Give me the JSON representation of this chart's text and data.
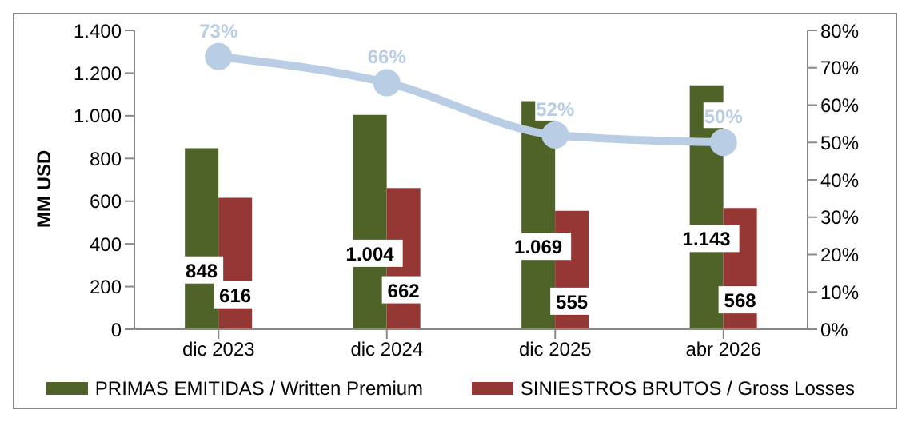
{
  "chart_data": {
    "type": "bar",
    "categories": [
      "dic 2023",
      "dic 2024",
      "dic 2025",
      "abr 2026"
    ],
    "ylabel": "MM  USD",
    "series": [
      {
        "name": "PRIMAS EMITIDAS / Written Premium",
        "color": "#4f6228",
        "values": [
          848,
          1004,
          1069,
          1143
        ],
        "value_labels": [
          "848",
          "1.004",
          "1.069",
          "1.143"
        ]
      },
      {
        "name": "SINIESTROS BRUTOS / Gross Losses",
        "color": "#953735",
        "values": [
          616,
          662,
          555,
          568
        ],
        "value_labels": [
          "616",
          "662",
          "555",
          "568"
        ]
      },
      {
        "type": "line",
        "axis": "y2",
        "color": "#b9cde5",
        "values": [
          73,
          66,
          52,
          50
        ],
        "value_labels": [
          "73%",
          "66%",
          "52%",
          "50%"
        ]
      }
    ],
    "ylim": [
      0,
      1400
    ],
    "yticks": [
      0,
      200,
      400,
      600,
      800,
      {
        "value": 1000,
        "label": "1.000"
      },
      {
        "value": 1200,
        "label": "1.200"
      },
      {
        "value": 1400,
        "label": "1.400"
      }
    ],
    "y2lim": [
      0,
      80
    ],
    "y2ticks": [
      {
        "value": 0,
        "label": "0%"
      },
      {
        "value": 10,
        "label": "10%"
      },
      {
        "value": 20,
        "label": "20%"
      },
      {
        "value": 30,
        "label": "30%"
      },
      {
        "value": 40,
        "label": "40%"
      },
      {
        "value": 50,
        "label": "50%"
      },
      {
        "value": 60,
        "label": "60%"
      },
      {
        "value": 70,
        "label": "70%"
      },
      {
        "value": 80,
        "label": "80%"
      }
    ],
    "legend": "bottom",
    "marker": "circle"
  }
}
